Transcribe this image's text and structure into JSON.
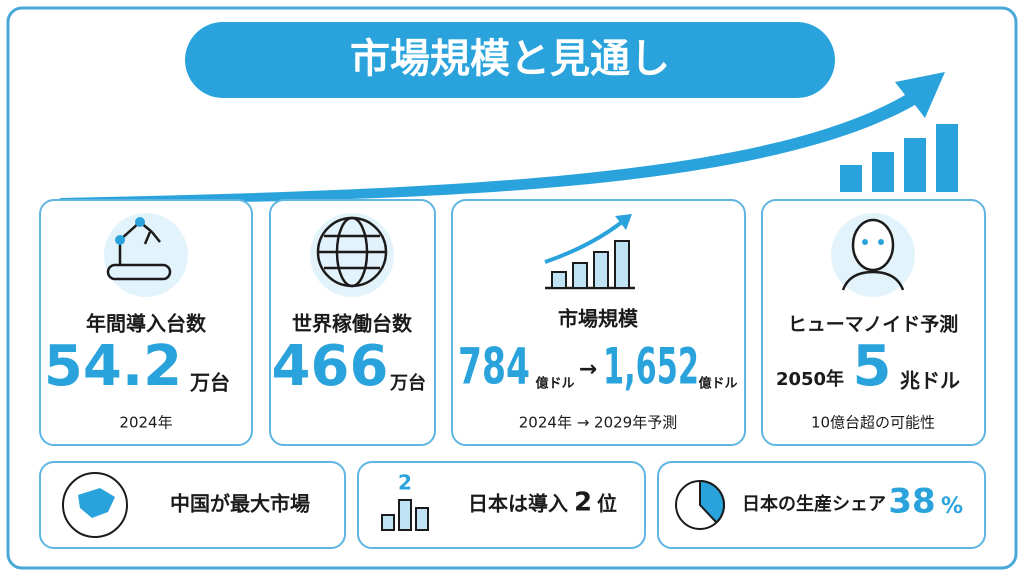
{
  "header": {
    "title": "市場規模と見通し"
  },
  "cards": [
    {
      "label": "年間導入台数",
      "value": "54.2",
      "unit": "万台",
      "note": "2024年"
    },
    {
      "label": "世界稼働台数",
      "value": "466",
      "unit": "万台"
    },
    {
      "label": "市場規模",
      "from_value": "784",
      "from_unit": "億ドル",
      "arrow": "→",
      "to_value": "1,652",
      "to_unit": "億ドル",
      "note": "2024年 → 2029年予測"
    },
    {
      "label": "ヒューマノイド予測",
      "prefix": "2050年",
      "value": "5",
      "unit": "兆ドル",
      "note": "10億台超の可能性"
    }
  ],
  "facts": [
    {
      "text": "中国が最大市場"
    },
    {
      "icon_label": "2",
      "text": "日本は導入",
      "value": "2",
      "suffix": "位"
    },
    {
      "text": "日本の生産シェア",
      "value": 38,
      "unit": "%"
    }
  ]
}
